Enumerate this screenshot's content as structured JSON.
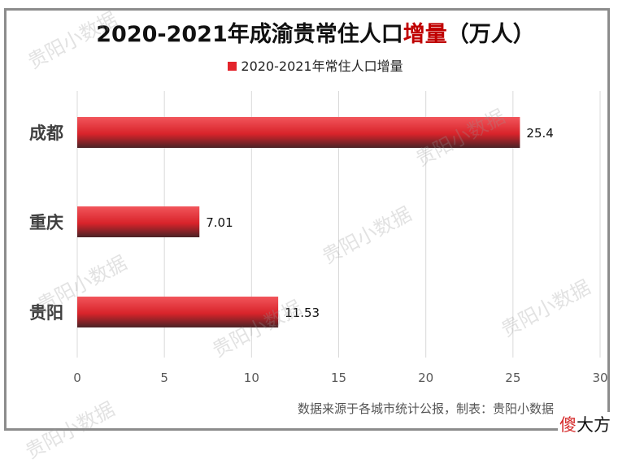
{
  "title": {
    "main": "2020-2021年成渝贵常住人口",
    "highlight": "增量",
    "suffix": "（万人）"
  },
  "chart_data": {
    "type": "bar",
    "orientation": "horizontal",
    "categories": [
      "成都",
      "重庆",
      "贵阳"
    ],
    "series": [
      {
        "name": "2020-2021年常住人口增量",
        "values": [
          25.4,
          7.01,
          11.53
        ]
      }
    ],
    "data_labels": [
      "25.4",
      "7.01",
      "11.53"
    ],
    "xlim": [
      0,
      30
    ],
    "xticks": [
      0,
      5,
      10,
      15,
      20,
      25,
      30
    ],
    "grid": true,
    "legend_position": "top",
    "bar_color": "#e3242b"
  },
  "source_note": "数据来源于各城市统计公报，制表：贵阳小数据",
  "brand": {
    "first": "傻",
    "rest": "大方"
  },
  "watermark": "贵阳小数据"
}
